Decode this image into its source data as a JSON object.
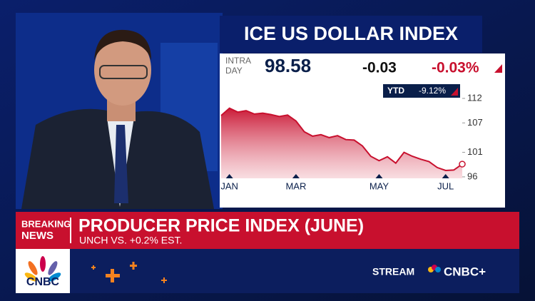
{
  "ticker": {
    "title": "ICE US DOLLAR INDEX",
    "intraday_label": [
      "INTRA",
      "DAY"
    ],
    "price": "98.58",
    "change": "-0.03",
    "change_pct": "-0.03%",
    "ytd_label": "YTD",
    "ytd_value": "-9.12%"
  },
  "chart_data": {
    "type": "line",
    "categories": [
      null,
      "JAN",
      null,
      null,
      null,
      null,
      null,
      null,
      null,
      "MAR",
      null,
      null,
      null,
      null,
      null,
      null,
      null,
      null,
      null,
      "MAY",
      null,
      null,
      null,
      null,
      null,
      null,
      null,
      "JUL",
      null,
      null
    ],
    "values": [
      108.5,
      110,
      109.2,
      109.5,
      108.8,
      109,
      108.7,
      108.3,
      108.6,
      107.4,
      105.2,
      104.3,
      104.6,
      104,
      104.4,
      103.6,
      103.5,
      102.3,
      100.2,
      99.3,
      100.1,
      98.8,
      101,
      100.2,
      99.6,
      99.1,
      97.9,
      97.3,
      97.4,
      98.6
    ],
    "color": "#c8102e",
    "ylim": [
      95.7,
      114.9
    ],
    "yticks": [
      96,
      101,
      107,
      112
    ]
  },
  "banner": {
    "tag": [
      "BREAKING",
      "NEWS"
    ],
    "headline": "PRODUCER PRICE INDEX (JUNE)",
    "subline": "UNCH VS. +0.2% EST."
  },
  "footer": {
    "logo": "CNBC",
    "stream": "STREAM",
    "brand": "CNBC+"
  }
}
